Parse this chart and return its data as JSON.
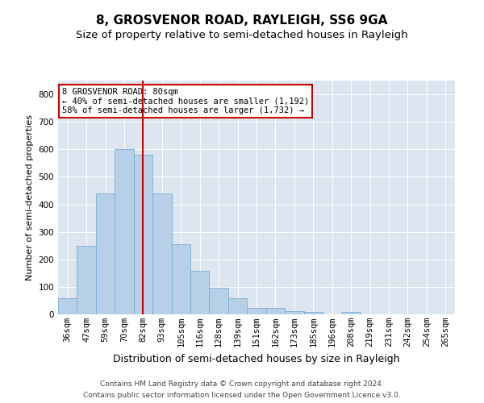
{
  "title": "8, GROSVENOR ROAD, RAYLEIGH, SS6 9GA",
  "subtitle": "Size of property relative to semi-detached houses in Rayleigh",
  "xlabel": "Distribution of semi-detached houses by size in Rayleigh",
  "ylabel": "Number of semi-detached properties",
  "footer1": "Contains HM Land Registry data © Crown copyright and database right 2024.",
  "footer2": "Contains public sector information licensed under the Open Government Licence v3.0.",
  "categories": [
    "36sqm",
    "47sqm",
    "59sqm",
    "70sqm",
    "82sqm",
    "93sqm",
    "105sqm",
    "116sqm",
    "128sqm",
    "139sqm",
    "151sqm",
    "162sqm",
    "173sqm",
    "185sqm",
    "196sqm",
    "208sqm",
    "219sqm",
    "231sqm",
    "242sqm",
    "254sqm",
    "265sqm"
  ],
  "values": [
    60,
    250,
    440,
    600,
    580,
    440,
    255,
    158,
    97,
    60,
    22,
    22,
    12,
    10,
    0,
    8,
    0,
    0,
    0,
    0,
    0
  ],
  "bar_color": "#b8cfe8",
  "bar_edge_color": "#7aafd4",
  "vline_x": 4,
  "vline_color": "#cc0000",
  "annotation_box_text": "8 GROSVENOR ROAD: 80sqm\n← 40% of semi-detached houses are smaller (1,192)\n58% of semi-detached houses are larger (1,732) →",
  "annotation_box_color": "#cc0000",
  "ylim": [
    0,
    850
  ],
  "yticks": [
    0,
    100,
    200,
    300,
    400,
    500,
    600,
    700,
    800
  ],
  "bg_color": "#dde6f0",
  "title_fontsize": 11,
  "subtitle_fontsize": 9.5,
  "xlabel_fontsize": 9,
  "ylabel_fontsize": 8,
  "tick_fontsize": 7.5,
  "footer_fontsize": 6.5
}
